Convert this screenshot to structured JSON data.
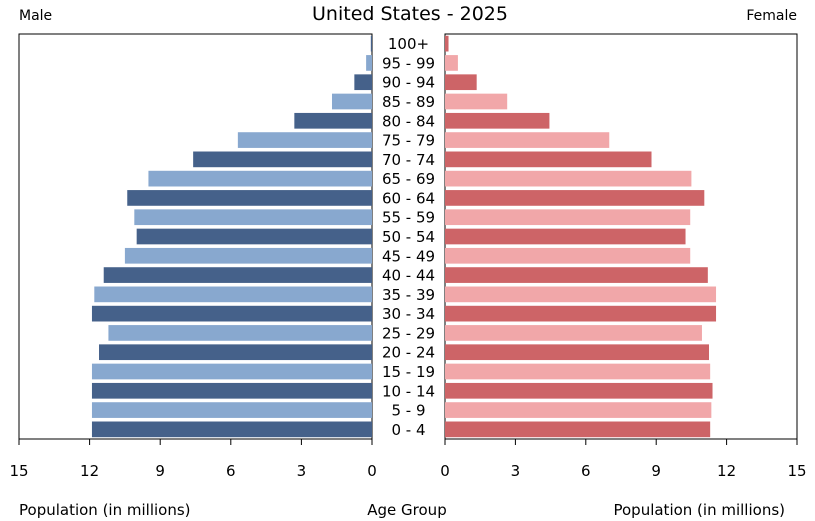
{
  "chart_data": {
    "type": "bar",
    "subtype": "population-pyramid",
    "title": "United States - 2025",
    "left_label": "Male",
    "right_label": "Female",
    "xlabel_left": "Population (in millions)",
    "xlabel_center": "Age Group",
    "xlabel_right": "Population (in millions)",
    "xlim": [
      0,
      15
    ],
    "ticks": [
      0,
      3,
      6,
      9,
      12,
      15
    ],
    "colors": {
      "male_dark": "#45618a",
      "male_light": "#88a8cf",
      "female_dark": "#cd6467",
      "female_light": "#f1a7a9"
    },
    "categories": [
      "100+",
      "95 - 99",
      "90 - 94",
      "85 - 89",
      "80 - 84",
      "75 - 79",
      "70 - 74",
      "65 - 69",
      "60 - 64",
      "55 - 59",
      "50 - 54",
      "45 - 49",
      "40 - 44",
      "35 - 39",
      "30 - 34",
      "25 - 29",
      "20 - 24",
      "15 - 19",
      "10 - 14",
      "5 - 9",
      "0 - 4"
    ],
    "series": [
      {
        "values": [
          0.05,
          0.25,
          0.75,
          1.7,
          3.3,
          5.7,
          7.6,
          9.5,
          10.4,
          10.1,
          10.0,
          10.5,
          11.4,
          11.8,
          11.9,
          11.2,
          11.6,
          11.9,
          11.9,
          11.9,
          11.9
        ]
      },
      {
        "values": [
          0.15,
          0.55,
          1.35,
          2.65,
          4.45,
          7.0,
          8.8,
          10.5,
          11.05,
          10.45,
          10.25,
          10.45,
          11.2,
          11.55,
          11.55,
          10.95,
          11.25,
          11.3,
          11.4,
          11.35,
          11.3
        ]
      }
    ]
  }
}
